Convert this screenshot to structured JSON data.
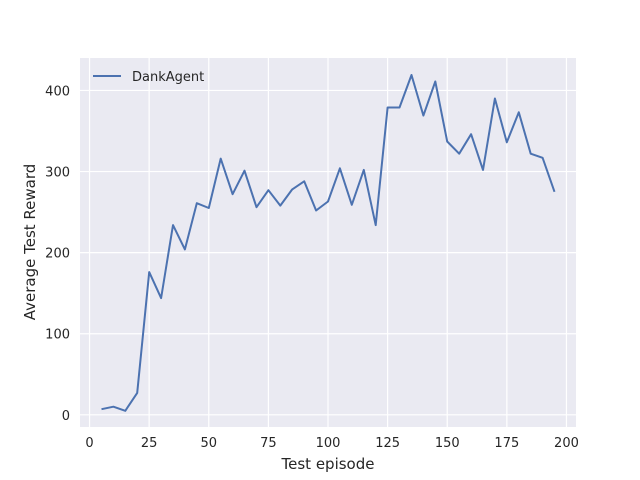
{
  "chart_data": {
    "type": "line",
    "xlabel": "Test episode",
    "ylabel": "Average Test Reward",
    "xlim": [
      -4,
      204
    ],
    "ylim": [
      -15,
      440
    ],
    "xticks": [
      0,
      25,
      50,
      75,
      100,
      125,
      150,
      175,
      200
    ],
    "yticks": [
      0,
      100,
      200,
      300,
      400
    ],
    "grid": true,
    "legend_position": "upper-left",
    "background_color": "#eaeaf2",
    "grid_color": "#ffffff",
    "series": [
      {
        "name": "DankAgent",
        "color": "#4c72b0",
        "x": [
          5,
          10,
          15,
          20,
          25,
          30,
          35,
          40,
          45,
          50,
          55,
          60,
          65,
          70,
          75,
          80,
          85,
          90,
          95,
          100,
          105,
          110,
          115,
          120,
          125,
          130,
          135,
          140,
          145,
          150,
          155,
          160,
          165,
          170,
          175,
          180,
          185,
          190,
          195
        ],
        "y": [
          7,
          10,
          5,
          27,
          176,
          144,
          234,
          204,
          261,
          255,
          316,
          272,
          301,
          256,
          277,
          258,
          278,
          288,
          252,
          263,
          304,
          259,
          302,
          234,
          379,
          379,
          419,
          369,
          411,
          337,
          322,
          346,
          302,
          390,
          336,
          373,
          322,
          317,
          275
        ]
      }
    ]
  }
}
